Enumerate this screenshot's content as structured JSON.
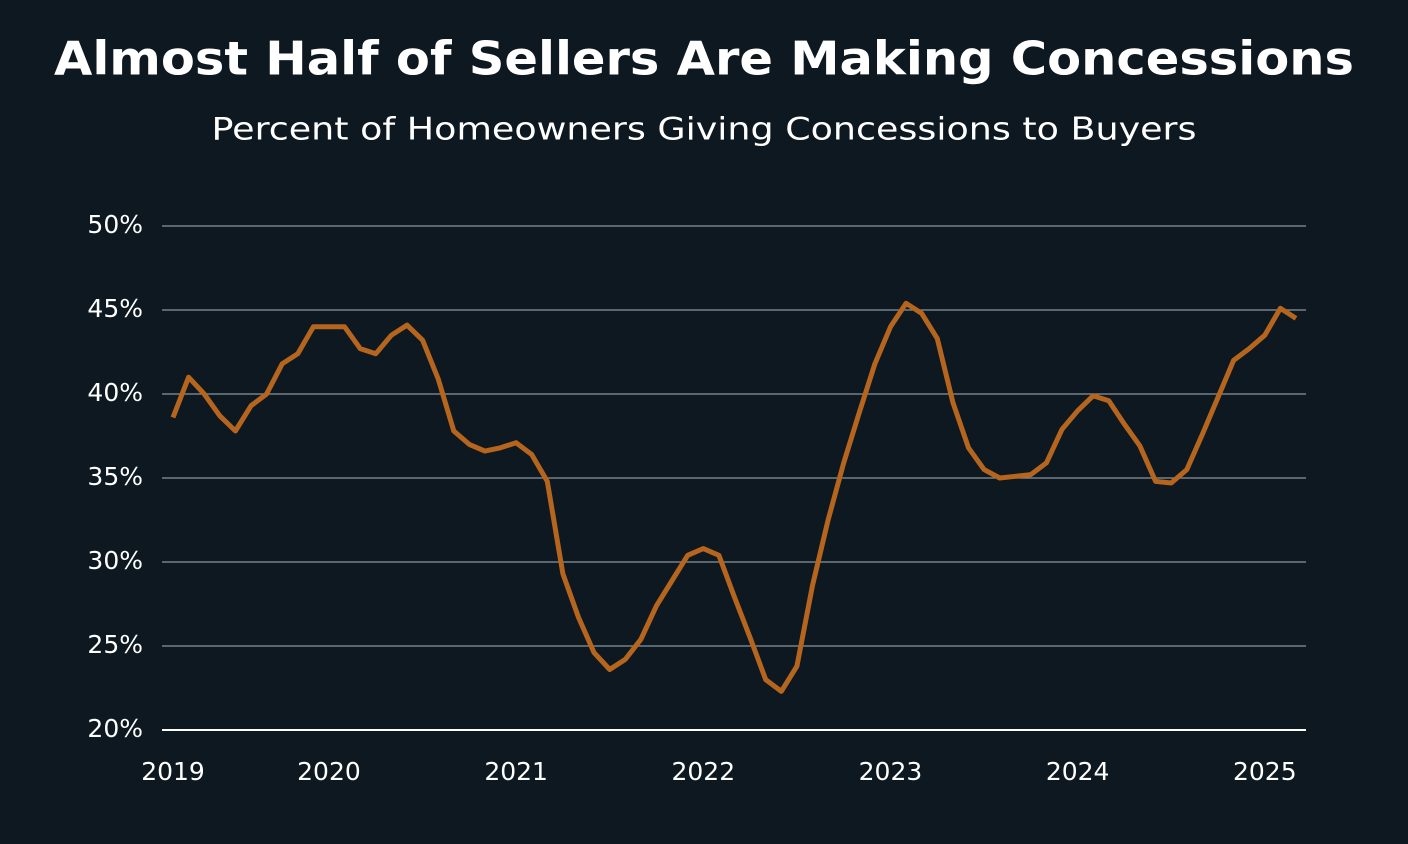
{
  "chart_data": {
    "type": "line",
    "title": "Almost Half of Sellers Are Making Concessions",
    "subtitle": "Percent of Homeowners Giving Concessions to Buyers",
    "categories": [
      "2019",
      null,
      null,
      null,
      null,
      null,
      null,
      null,
      null,
      null,
      "2020",
      null,
      null,
      null,
      null,
      null,
      null,
      null,
      null,
      null,
      null,
      null,
      "2021",
      null,
      null,
      null,
      null,
      null,
      null,
      null,
      null,
      null,
      null,
      null,
      "2022",
      null,
      null,
      null,
      null,
      null,
      null,
      null,
      null,
      null,
      null,
      null,
      "2023",
      null,
      null,
      null,
      null,
      null,
      null,
      null,
      null,
      null,
      null,
      null,
      "2024",
      null,
      null,
      null,
      null,
      null,
      null,
      null,
      null,
      null,
      null,
      null,
      "2025",
      null,
      null
    ],
    "series": [
      {
        "name": "Percent of homeowners giving concessions",
        "color": "#b5651d",
        "values": [
          38.6,
          41.0,
          40.0,
          38.7,
          37.8,
          39.3,
          40.0,
          41.8,
          42.4,
          44.0,
          44.0,
          44.0,
          42.7,
          42.4,
          43.5,
          44.1,
          43.2,
          40.9,
          37.8,
          37.0,
          36.6,
          36.8,
          37.1,
          36.4,
          34.8,
          29.3,
          26.7,
          24.6,
          23.6,
          24.2,
          25.4,
          27.4,
          28.9,
          30.4,
          30.8,
          30.4,
          27.9,
          25.5,
          23.0,
          22.3,
          23.8,
          28.6,
          32.5,
          35.9,
          38.9,
          41.8,
          44.0,
          45.4,
          44.8,
          43.3,
          39.5,
          36.8,
          35.5,
          35.0,
          35.1,
          35.2,
          35.9,
          37.9,
          39.0,
          39.9,
          39.6,
          38.2,
          36.9,
          34.8,
          34.7,
          35.5,
          37.6,
          39.8,
          42.0,
          42.7,
          43.5,
          45.1,
          44.5
        ]
      }
    ],
    "ylim": [
      20,
      50
    ],
    "yticks": [
      {
        "value": 20,
        "label": "20%"
      },
      {
        "value": 25,
        "label": "25%"
      },
      {
        "value": 30,
        "label": "30%"
      },
      {
        "value": 35,
        "label": "35%"
      },
      {
        "value": 40,
        "label": "40%"
      },
      {
        "value": 45,
        "label": "45%"
      },
      {
        "value": 50,
        "label": "50%"
      }
    ],
    "grid": true
  }
}
